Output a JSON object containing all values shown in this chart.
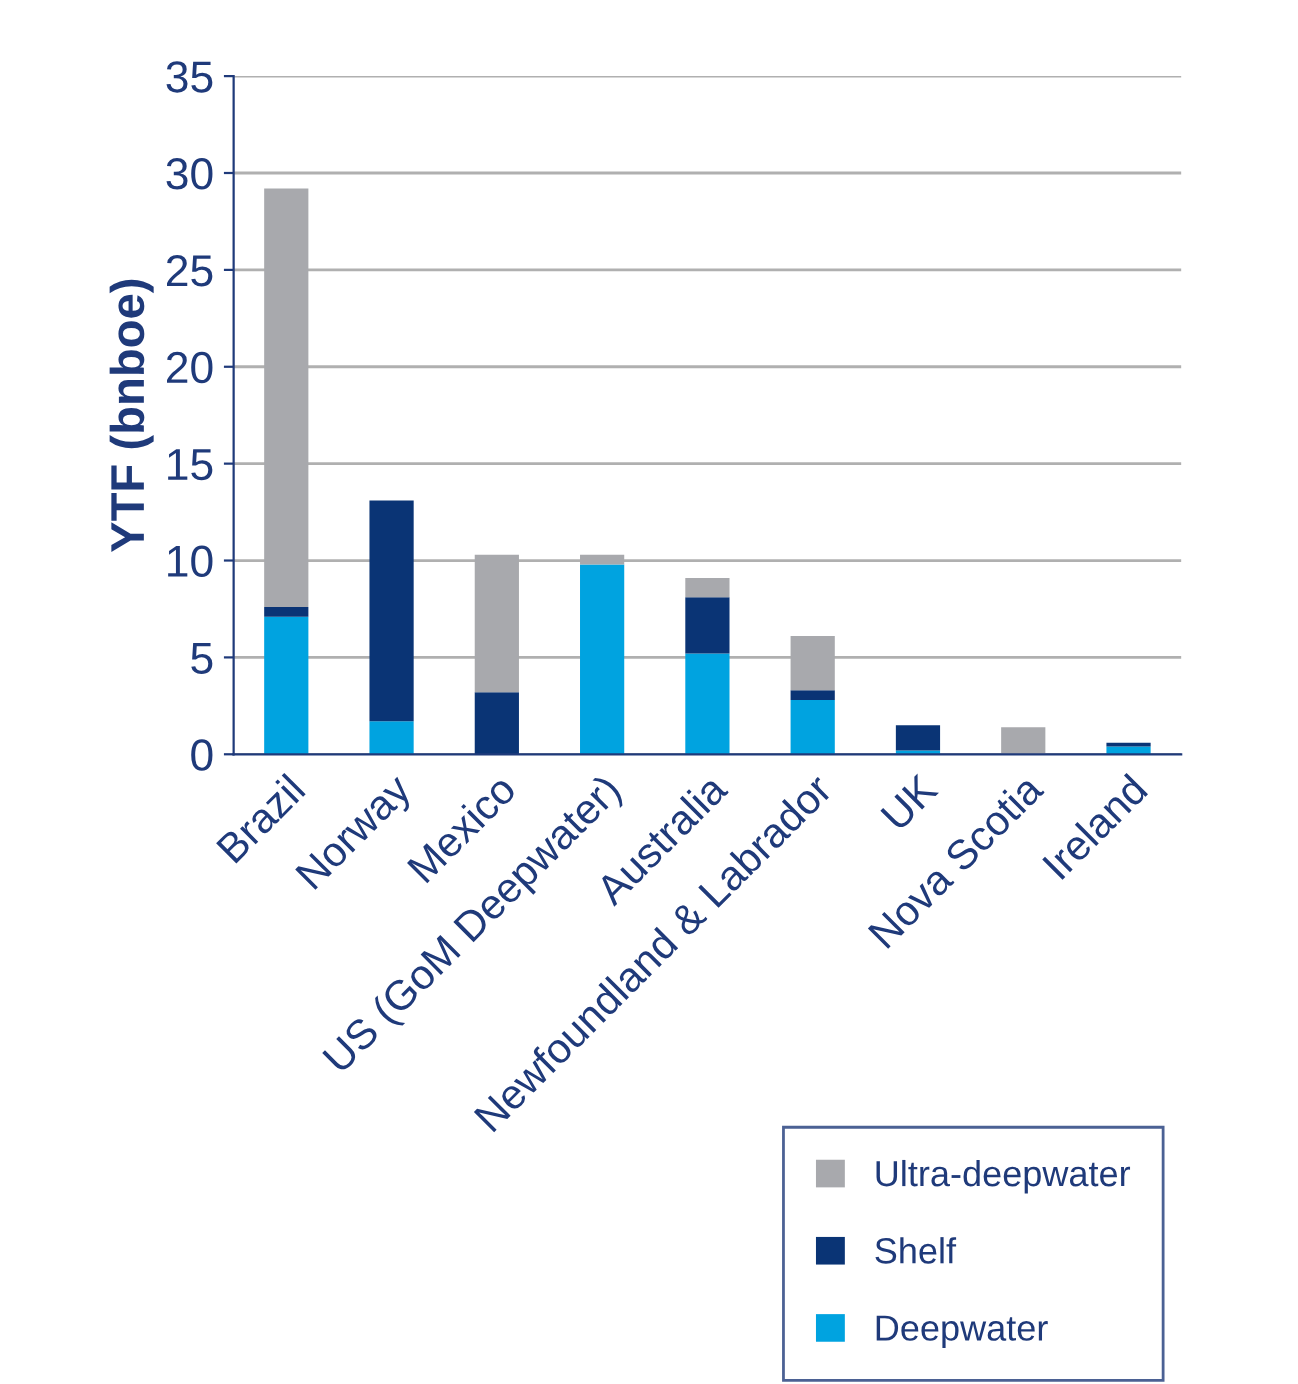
{
  "chart_data": {
    "type": "bar",
    "stacked": true,
    "ylabel": "YTF (bnboe)",
    "categories": [
      "Brazil",
      "Norway",
      "Mexico",
      "US (GoM Deepwater)",
      "Australia",
      "Newfoundland & Labrador",
      "UK",
      "Nova Scotia",
      "Ireland"
    ],
    "series": [
      {
        "name": "Deepwater",
        "color": "#00a3e0",
        "values": [
          7.1,
          1.7,
          0,
          9.8,
          5.2,
          2.8,
          0.2,
          0,
          0.4
        ]
      },
      {
        "name": "Shelf",
        "color": "#0a3475",
        "values": [
          0.5,
          11.4,
          3.2,
          0,
          2.9,
          0.5,
          1.3,
          0,
          0.2
        ]
      },
      {
        "name": "Ultra-deepwater",
        "color": "#a8a9ad",
        "values": [
          21.6,
          0,
          7.1,
          0.5,
          1.0,
          2.8,
          0,
          1.4,
          0
        ]
      }
    ],
    "ylim": [
      0,
      35
    ],
    "yticks": [
      0,
      5,
      10,
      15,
      20,
      25,
      30,
      35
    ],
    "grid": "y",
    "legend": "bottom right"
  }
}
